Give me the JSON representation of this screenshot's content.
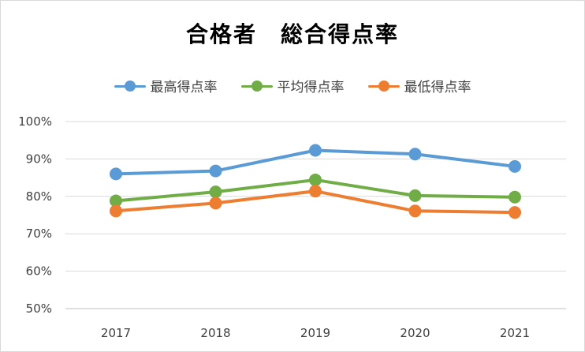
{
  "chart_data": {
    "type": "line",
    "title": "合格者　総合得点率",
    "xlabel": "",
    "ylabel": "",
    "categories": [
      "2017",
      "2018",
      "2019",
      "2020",
      "2021"
    ],
    "yticks": [
      "50%",
      "60%",
      "70%",
      "80%",
      "90%",
      "100%"
    ],
    "ylim": [
      50,
      100
    ],
    "grid": true,
    "legend_position": "top",
    "series": [
      {
        "name": "最高得点率",
        "color": "#5b9bd5",
        "values": [
          86,
          86.8,
          92.3,
          91.3,
          88
        ]
      },
      {
        "name": "平均得点率",
        "color": "#70ad47",
        "values": [
          78.8,
          81.2,
          84.4,
          80.2,
          79.8
        ]
      },
      {
        "name": "最低得点率",
        "color": "#ed7d31",
        "values": [
          76.1,
          78.2,
          81.4,
          76.1,
          75.7
        ]
      }
    ]
  }
}
